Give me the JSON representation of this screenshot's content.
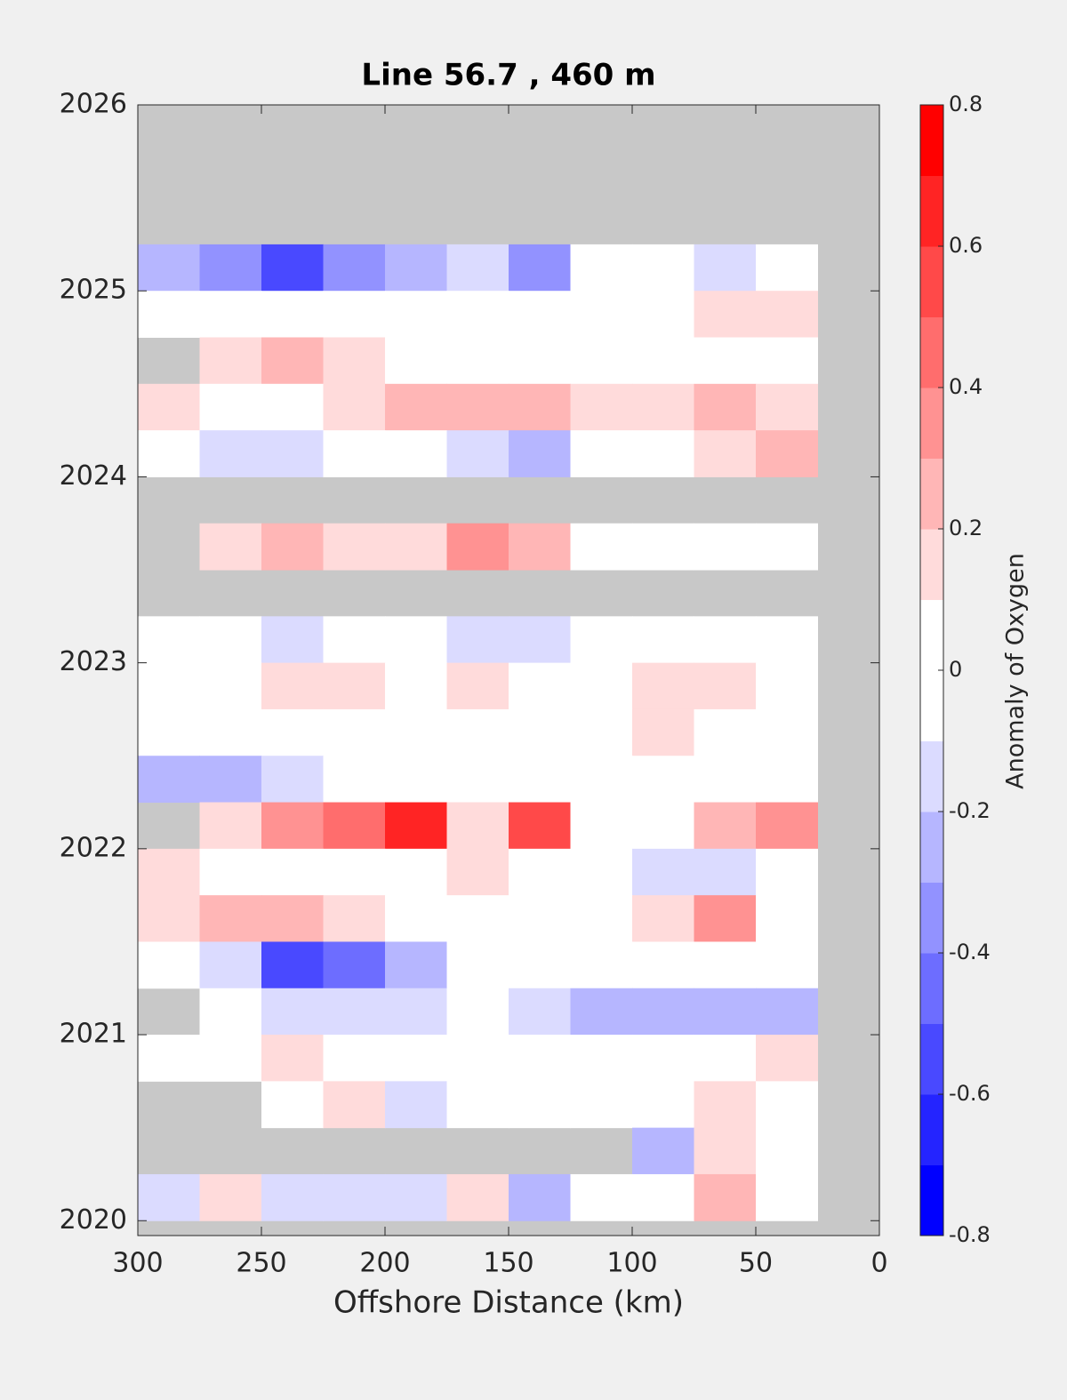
{
  "chart_data": {
    "type": "contour",
    "title": "Line 56.7 , 460 m",
    "xlabel": "Offshore Distance (km)",
    "colorbar_label": "Anomaly of Oxygen",
    "xlim": [
      300,
      0
    ],
    "xticks": [
      300,
      250,
      200,
      150,
      100,
      50,
      0
    ],
    "ylim": [
      2019.92,
      2026
    ],
    "yticks": [
      2020,
      2021,
      2022,
      2023,
      2024,
      2025,
      2026
    ],
    "clim": [
      -0.8,
      0.8
    ],
    "cticks": [
      -0.8,
      -0.6,
      -0.4,
      -0.2,
      0,
      0.2,
      0.4,
      0.6,
      0.8
    ],
    "levels": [
      -0.8,
      -0.7,
      -0.6,
      -0.5,
      -0.4,
      -0.3,
      -0.2,
      -0.1,
      0,
      0.1,
      0.2,
      0.3,
      0.4,
      0.5,
      0.6,
      0.7,
      0.8
    ],
    "missing_color": "#c8c8c8",
    "x": [
      287.5,
      262.5,
      237.5,
      212.5,
      187.5,
      162.5,
      137.5,
      112.5,
      87.5,
      62.5,
      37.5
    ],
    "y": [
      2025.125,
      2024.875,
      2024.625,
      2024.375,
      2024.125,
      2023.875,
      2023.625,
      2023.375,
      2023.125,
      2022.875,
      2022.625,
      2022.375,
      2022.125,
      2021.875,
      2021.625,
      2021.375,
      2021.125,
      2020.875,
      2020.625,
      2020.375,
      2020.125
    ],
    "z": [
      [
        -0.3,
        -0.4,
        -0.6,
        -0.4,
        -0.3,
        -0.2,
        -0.4,
        -0.1,
        0,
        -0.2,
        -0.1
      ],
      [
        -0.1,
        0,
        -0.1,
        0,
        -0.1,
        -0.1,
        0,
        0,
        0,
        0.1,
        0.1
      ],
      [
        null,
        0.1,
        0.2,
        0.1,
        -0.1,
        -0.1,
        -0.1,
        0,
        -0.1,
        0,
        0
      ],
      [
        0.1,
        0,
        0,
        0.1,
        0.2,
        0.2,
        0.2,
        0.1,
        0.1,
        0.2,
        0.1
      ],
      [
        -0.1,
        -0.2,
        -0.2,
        -0.1,
        -0.1,
        -0.2,
        -0.3,
        -0.1,
        0,
        0.1,
        0.2
      ],
      [
        null,
        null,
        null,
        null,
        null,
        null,
        null,
        null,
        null,
        null,
        null
      ],
      [
        null,
        0.1,
        0.2,
        0.1,
        0.1,
        0.3,
        0.2,
        0,
        0,
        0,
        0
      ],
      [
        null,
        null,
        null,
        null,
        null,
        null,
        null,
        null,
        null,
        null,
        null
      ],
      [
        -0.1,
        -0.1,
        -0.2,
        -0.1,
        -0.1,
        -0.2,
        -0.2,
        -0.1,
        0,
        0,
        0
      ],
      [
        0,
        0,
        0.1,
        0.1,
        0,
        0.1,
        0,
        0,
        0.1,
        0.1,
        0
      ],
      [
        0,
        0,
        0,
        0,
        0,
        0,
        -0.1,
        0,
        0.1,
        0,
        0
      ],
      [
        -0.3,
        -0.3,
        -0.2,
        -0.1,
        0,
        -0.1,
        -0.1,
        0,
        0,
        0,
        0
      ],
      [
        null,
        0.1,
        0.3,
        0.4,
        0.6,
        0.1,
        0.5,
        0,
        0,
        0.2,
        0.3
      ],
      [
        0.1,
        0,
        -0.1,
        0,
        0,
        0.1,
        0,
        -0.1,
        -0.2,
        -0.2,
        -0.1
      ],
      [
        0.1,
        0.2,
        0.2,
        0.1,
        0,
        0,
        0,
        -0.1,
        0.1,
        0.3,
        0
      ],
      [
        -0.1,
        -0.2,
        -0.6,
        -0.5,
        -0.3,
        0,
        0,
        -0.1,
        -0.1,
        -0.1,
        -0.1
      ],
      [
        null,
        -0.1,
        -0.2,
        -0.2,
        -0.2,
        -0.1,
        -0.2,
        -0.3,
        -0.3,
        -0.3,
        -0.3
      ],
      [
        0,
        0,
        0.1,
        0,
        0,
        -0.1,
        0,
        0,
        0,
        0,
        0.1
      ],
      [
        null,
        null,
        -0.1,
        0.1,
        -0.2,
        0,
        0,
        0,
        0,
        0.1,
        0
      ],
      [
        null,
        null,
        null,
        null,
        null,
        null,
        null,
        null,
        -0.3,
        0.1,
        0
      ],
      [
        -0.2,
        0.1,
        -0.2,
        -0.2,
        -0.2,
        0.1,
        -0.3,
        -0.1,
        0,
        0.2,
        0
      ]
    ]
  }
}
